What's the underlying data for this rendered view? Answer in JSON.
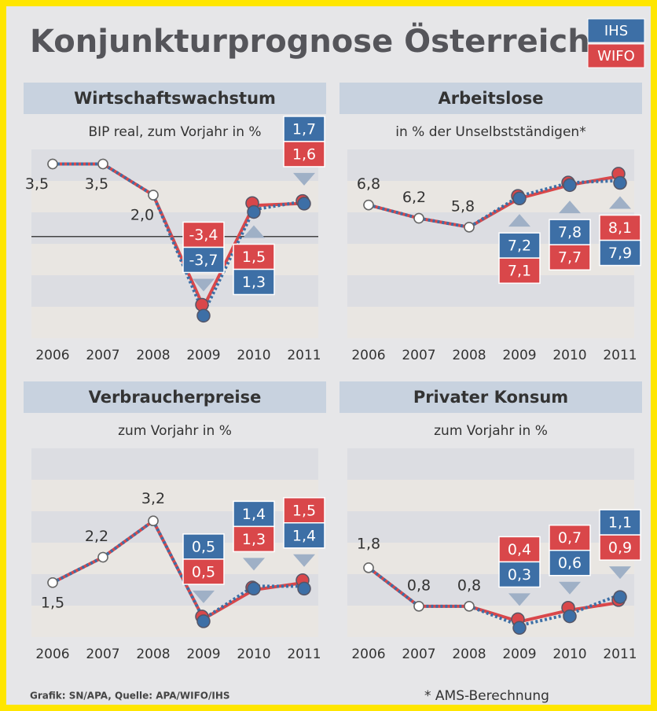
{
  "title": "Konjunkturprognose Österreich",
  "source": "Grafik: SN/APA, Quelle: APA/WIFO/IHS",
  "footnote": "* AMS-Berechnung",
  "chart_data": [
    {
      "type": "line",
      "title": "Wirtschaftswachstum",
      "subtitle": "BIP real, zum Vorjahr in %",
      "categories": [
        "2006",
        "2007",
        "2008",
        "2009",
        "2010",
        "2011"
      ],
      "ylim": [
        -4.9,
        4.2
      ],
      "zero_line": true,
      "series": [
        {
          "name": "IHS",
          "color": "#3d6fa6",
          "values": [
            3.5,
            3.5,
            2.0,
            -3.7,
            1.3,
            1.7
          ],
          "value_labels": [
            "3,5",
            "3,5",
            "2,0",
            "-3,7",
            "1,3",
            "1,7"
          ]
        },
        {
          "name": "WIFO",
          "color": "#d9474a",
          "values": [
            3.5,
            3.5,
            2.0,
            -3.4,
            1.5,
            1.6
          ],
          "value_labels": [
            null,
            null,
            null,
            "-3,4",
            "1,5",
            "1,6"
          ]
        }
      ]
    },
    {
      "type": "line",
      "title": "Arbeitslose",
      "subtitle": "in % der Unselbstständigen*",
      "categories": [
        "2006",
        "2007",
        "2008",
        "2009",
        "2010",
        "2011"
      ],
      "ylim": [
        0.8,
        9.3
      ],
      "series": [
        {
          "name": "IHS",
          "color": "#3d6fa6",
          "values": [
            6.8,
            6.2,
            5.8,
            7.2,
            7.8,
            7.9
          ],
          "value_labels": [
            "6,8",
            "6,2",
            "5,8",
            "7,2",
            "7,8",
            "7,9"
          ]
        },
        {
          "name": "WIFO",
          "color": "#d9474a",
          "values": [
            6.8,
            6.2,
            5.8,
            7.1,
            7.7,
            8.1
          ],
          "value_labels": [
            null,
            null,
            null,
            "7,1",
            "7,7",
            "8,1"
          ]
        }
      ]
    },
    {
      "type": "line",
      "title": "Verbraucherpreise",
      "subtitle": "zum Vorjahr in %",
      "categories": [
        "2006",
        "2007",
        "2008",
        "2009",
        "2010",
        "2011"
      ],
      "ylim": [
        0,
        5.2
      ],
      "series": [
        {
          "name": "IHS",
          "color": "#3d6fa6",
          "values": [
            1.5,
            2.2,
            3.2,
            0.5,
            1.4,
            1.4
          ],
          "value_labels": [
            "1,5",
            "2,2",
            "3,2",
            "0,5",
            "1,4",
            "1,4"
          ]
        },
        {
          "name": "WIFO",
          "color": "#d9474a",
          "values": [
            1.5,
            2.2,
            3.2,
            0.5,
            1.3,
            1.5
          ],
          "value_labels": [
            null,
            null,
            null,
            "0,5",
            "1,3",
            "1,5"
          ]
        }
      ]
    },
    {
      "type": "line",
      "title": "Privater Konsum",
      "subtitle": "zum Vorjahr in %",
      "categories": [
        "2006",
        "2007",
        "2008",
        "2009",
        "2010",
        "2011"
      ],
      "ylim": [
        0,
        4.9
      ],
      "series": [
        {
          "name": "IHS",
          "color": "#3d6fa6",
          "values": [
            1.8,
            0.8,
            0.8,
            0.3,
            0.6,
            1.1
          ],
          "value_labels": [
            "1,8",
            "0,8",
            "0,8",
            "0,3",
            "0,6",
            "1,1"
          ]
        },
        {
          "name": "WIFO",
          "color": "#d9474a",
          "values": [
            1.8,
            0.8,
            0.8,
            0.4,
            0.7,
            0.9
          ],
          "value_labels": [
            null,
            null,
            null,
            "0,4",
            "0,7",
            "0,9"
          ]
        }
      ]
    }
  ]
}
